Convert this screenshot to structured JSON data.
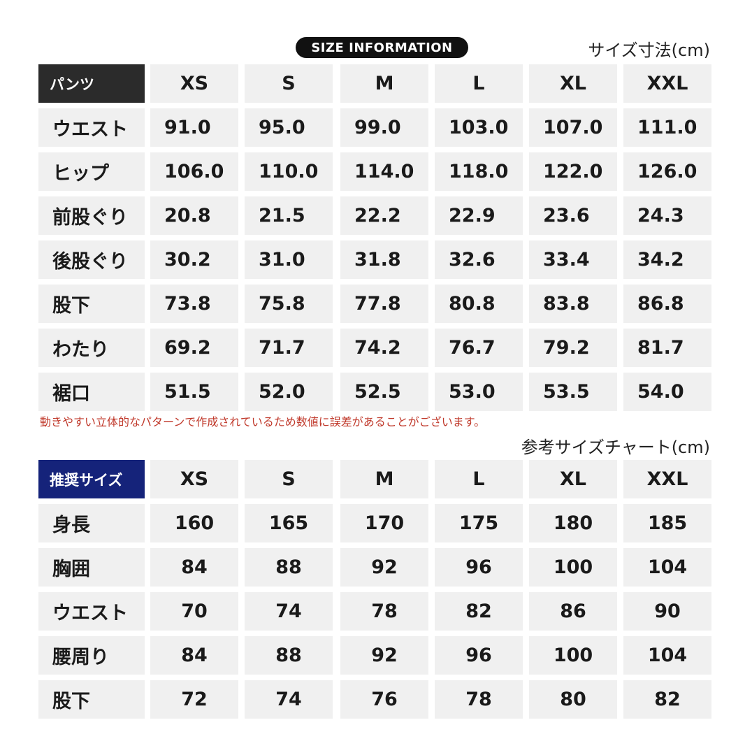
{
  "header": {
    "badge": "SIZE INFORMATION",
    "unit_note": "サイズ寸法(cm)"
  },
  "table1": {
    "corner": "パンツ",
    "columns": [
      "XS",
      "S",
      "M",
      "L",
      "XL",
      "XXL"
    ],
    "rows": [
      {
        "label": "ウエスト",
        "values": [
          "91.0",
          "95.0",
          "99.0",
          "103.0",
          "107.0",
          "111.0"
        ]
      },
      {
        "label": "ヒップ",
        "values": [
          "106.0",
          "110.0",
          "114.0",
          "118.0",
          "122.0",
          "126.0"
        ]
      },
      {
        "label": "前股ぐり",
        "values": [
          "20.8",
          "21.5",
          "22.2",
          "22.9",
          "23.6",
          "24.3"
        ]
      },
      {
        "label": "後股ぐり",
        "values": [
          "30.2",
          "31.0",
          "31.8",
          "32.6",
          "33.4",
          "34.2"
        ]
      },
      {
        "label": "股下",
        "values": [
          "73.8",
          "75.8",
          "77.8",
          "80.8",
          "83.8",
          "86.8"
        ]
      },
      {
        "label": "わたり",
        "values": [
          "69.2",
          "71.7",
          "74.2",
          "76.7",
          "79.2",
          "81.7"
        ]
      },
      {
        "label": "裾口",
        "values": [
          "51.5",
          "52.0",
          "52.5",
          "53.0",
          "53.5",
          "54.0"
        ]
      }
    ]
  },
  "note": "動きやすい立体的なパターンで作成されているため数値に誤差があることがございます。",
  "chart_note": "参考サイズチャート(cm)",
  "table2": {
    "corner": "推奨サイズ",
    "columns": [
      "XS",
      "S",
      "M",
      "L",
      "XL",
      "XXL"
    ],
    "rows": [
      {
        "label": "身長",
        "values": [
          "160",
          "165",
          "170",
          "175",
          "180",
          "185"
        ]
      },
      {
        "label": "胸囲",
        "values": [
          "84",
          "88",
          "92",
          "96",
          "100",
          "104"
        ]
      },
      {
        "label": "ウエスト",
        "values": [
          "70",
          "74",
          "78",
          "82",
          "86",
          "90"
        ]
      },
      {
        "label": "腰周り",
        "values": [
          "84",
          "88",
          "92",
          "96",
          "100",
          "104"
        ]
      },
      {
        "label": "股下",
        "values": [
          "72",
          "74",
          "76",
          "78",
          "80",
          "82"
        ]
      }
    ]
  }
}
